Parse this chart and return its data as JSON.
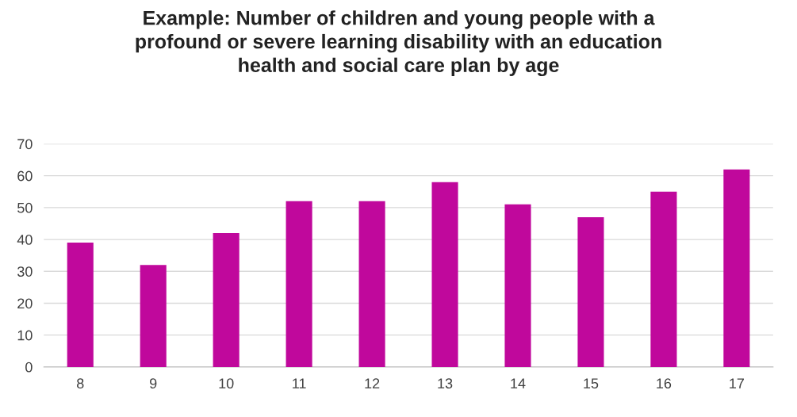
{
  "chart_data": {
    "type": "bar",
    "title": "Example: Number of children and young people with a\nprofound or severe learning disability with an education\nhealth and social care plan by age",
    "categories": [
      "8",
      "9",
      "10",
      "11",
      "12",
      "13",
      "14",
      "15",
      "16",
      "17"
    ],
    "values": [
      39,
      32,
      42,
      52,
      52,
      58,
      51,
      47,
      55,
      62
    ],
    "color": "#c0089c",
    "ylim": [
      0,
      70
    ],
    "yticks": [
      0,
      10,
      20,
      30,
      40,
      50,
      60,
      70
    ],
    "grid": "y"
  }
}
